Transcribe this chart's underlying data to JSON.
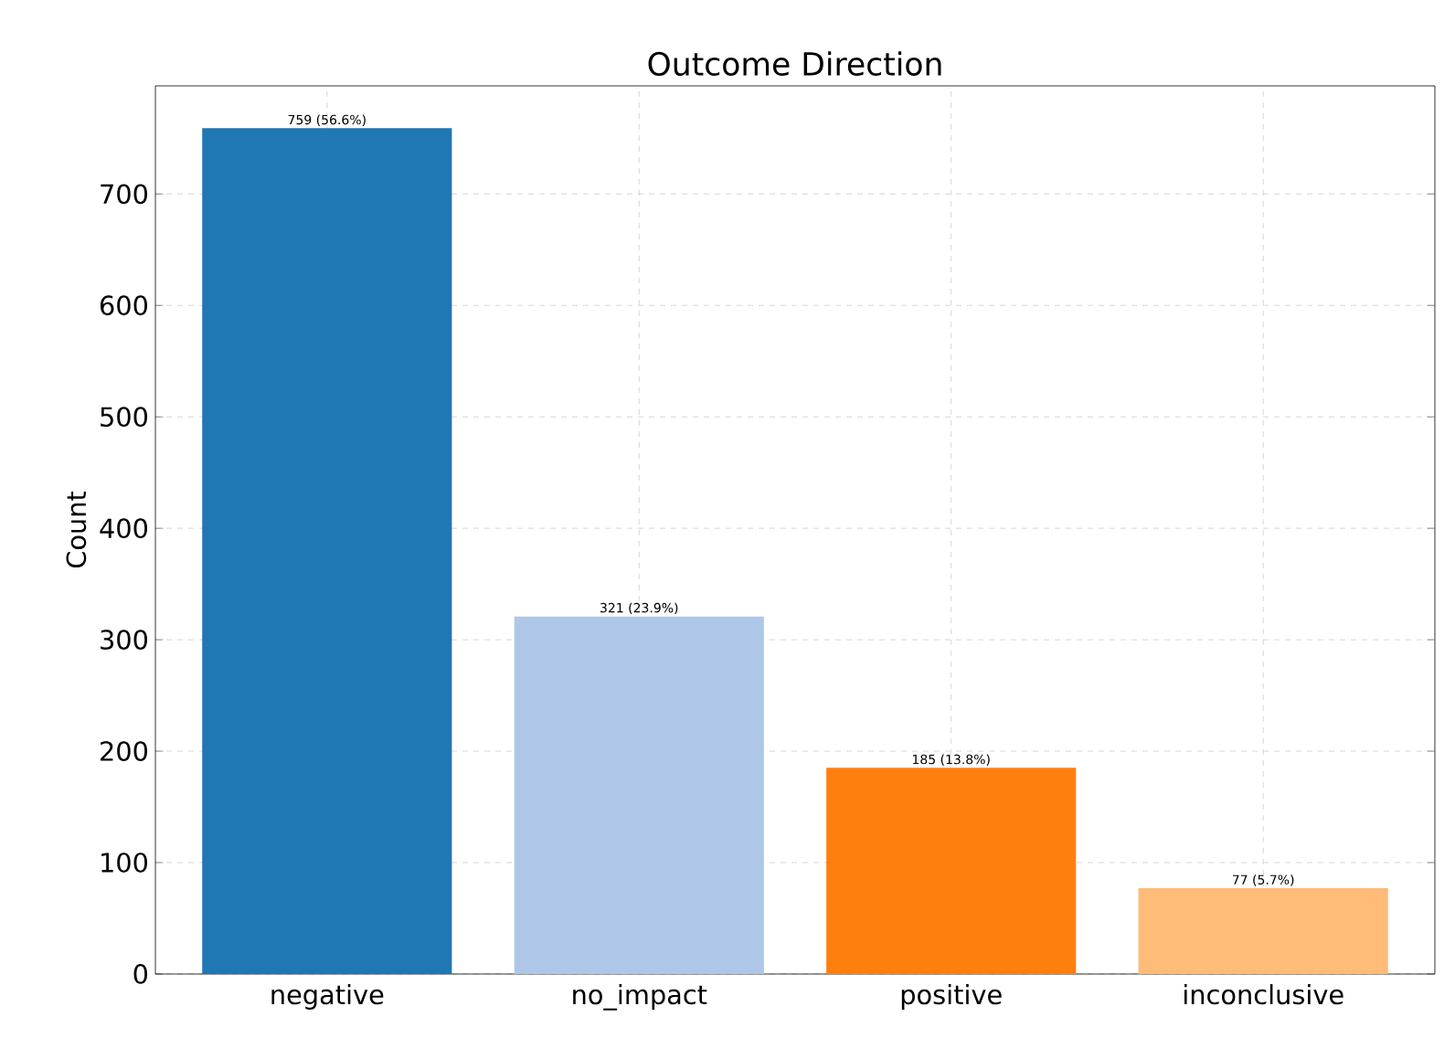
{
  "chart_data": {
    "type": "bar",
    "title": "Outcome Direction",
    "ylabel": "Count",
    "categories": [
      "negative",
      "no_impact",
      "positive",
      "inconclusive"
    ],
    "values": [
      759,
      321,
      185,
      77
    ],
    "colors": [
      "#1f77b4",
      "#aec7e8",
      "#ff7f0e",
      "#ffbb78"
    ],
    "value_labels": [
      "759 (56.6%)",
      "321 (23.9%)",
      "185 (13.8%)",
      "77 (5.7%)"
    ],
    "ylim": [
      0,
      797
    ],
    "yticks": [
      0,
      100,
      200,
      300,
      400,
      500,
      600,
      700
    ],
    "grid": true
  }
}
